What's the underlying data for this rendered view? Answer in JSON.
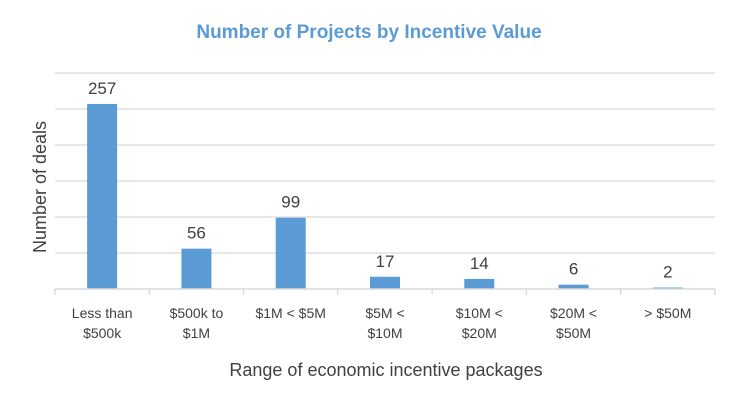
{
  "chart_data": {
    "type": "bar",
    "title": "Number of Projects by Incentive Value",
    "xlabel": "Range of economic incentive packages",
    "ylabel": "Number of deals",
    "categories": [
      [
        "Less than",
        "$500k"
      ],
      [
        "$500k to",
        "$1M"
      ],
      [
        "$1M < $5M"
      ],
      [
        "$5M <",
        "$10M"
      ],
      [
        "$10M <",
        "$20M"
      ],
      [
        "$20M <",
        "$50M"
      ],
      [
        "> $50M"
      ]
    ],
    "values": [
      257,
      56,
      99,
      17,
      14,
      6,
      2
    ],
    "data_labels": [
      "257",
      "56",
      "99",
      "17",
      "14",
      "6",
      "2"
    ],
    "ylim": [
      0,
      300
    ],
    "ygrid_step": 50,
    "grid": true,
    "y_tick_labels_shown": false,
    "legend": "none",
    "colors": {
      "bar": "#5b9bd5",
      "title": "#5b9bd5",
      "grid": "#d9d9d9",
      "text": "#404040"
    }
  }
}
